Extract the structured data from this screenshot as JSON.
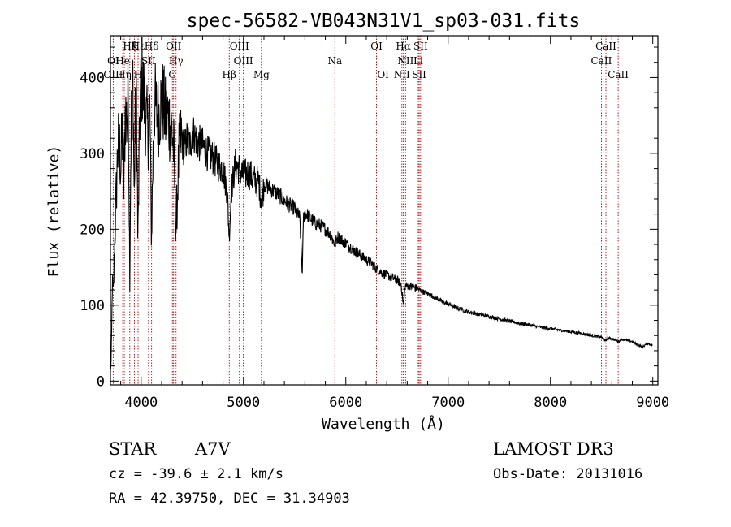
{
  "chart_data": {
    "type": "line",
    "title": "spec-56582-VB043N31V1_sp03-031.fits",
    "xlabel": "Wavelength (Å)",
    "ylabel": "Flux (relative)",
    "xlim": [
      3700,
      9050
    ],
    "ylim": [
      -5,
      455
    ],
    "xticks": [
      4000,
      5000,
      6000,
      7000,
      8000,
      9000
    ],
    "yticks": [
      0,
      100,
      200,
      300,
      400
    ],
    "xtick_labels": [
      "4000",
      "5000",
      "6000",
      "7000",
      "8000",
      "9000"
    ],
    "ytick_labels": [
      "0",
      "100",
      "200",
      "300",
      "400"
    ],
    "grid": false,
    "legend": "none",
    "series": [
      {
        "name": "flux",
        "anchors": [
          [
            3700,
            15
          ],
          [
            3705,
            20
          ],
          [
            3712,
            60
          ],
          [
            3718,
            130
          ],
          [
            3728,
            110
          ],
          [
            3740,
            175
          ],
          [
            3755,
            240
          ],
          [
            3770,
            300
          ],
          [
            3785,
            320
          ],
          [
            3800,
            280
          ],
          [
            3815,
            330
          ],
          [
            3830,
            250
          ],
          [
            3845,
            360
          ],
          [
            3860,
            340
          ],
          [
            3875,
            380
          ],
          [
            3880,
            280
          ],
          [
            3889,
            140
          ],
          [
            3895,
            250
          ],
          [
            3905,
            360
          ],
          [
            3920,
            400
          ],
          [
            3933,
            230
          ],
          [
            3940,
            330
          ],
          [
            3955,
            370
          ],
          [
            3968,
            180
          ],
          [
            3975,
            240
          ],
          [
            3990,
            370
          ],
          [
            4010,
            400
          ],
          [
            4030,
            370
          ],
          [
            4050,
            340
          ],
          [
            4070,
            330
          ],
          [
            4085,
            360
          ],
          [
            4101,
            180
          ],
          [
            4110,
            260
          ],
          [
            4130,
            370
          ],
          [
            4150,
            355
          ],
          [
            4170,
            350
          ],
          [
            4200,
            370
          ],
          [
            4220,
            365
          ],
          [
            4240,
            345
          ],
          [
            4260,
            350
          ],
          [
            4280,
            340
          ],
          [
            4300,
            330
          ],
          [
            4320,
            300
          ],
          [
            4340,
            195
          ],
          [
            4355,
            250
          ],
          [
            4370,
            300
          ],
          [
            4390,
            320
          ],
          [
            4420,
            305
          ],
          [
            4450,
            320
          ],
          [
            4480,
            310
          ],
          [
            4500,
            330
          ],
          [
            4550,
            315
          ],
          [
            4600,
            310
          ],
          [
            4650,
            300
          ],
          [
            4700,
            295
          ],
          [
            4750,
            285
          ],
          [
            4800,
            280
          ],
          [
            4840,
            250
          ],
          [
            4861,
            190
          ],
          [
            4880,
            250
          ],
          [
            4920,
            285
          ],
          [
            4960,
            280
          ],
          [
            5000,
            270
          ],
          [
            5050,
            275
          ],
          [
            5100,
            265
          ],
          [
            5150,
            262
          ],
          [
            5167,
            245
          ],
          [
            5183,
            240
          ],
          [
            5200,
            260
          ],
          [
            5250,
            255
          ],
          [
            5300,
            250
          ],
          [
            5350,
            245
          ],
          [
            5400,
            238
          ],
          [
            5450,
            232
          ],
          [
            5500,
            228
          ],
          [
            5550,
            215
          ],
          [
            5575,
            140
          ],
          [
            5585,
            215
          ],
          [
            5600,
            222
          ],
          [
            5650,
            215
          ],
          [
            5700,
            208
          ],
          [
            5750,
            205
          ],
          [
            5800,
            200
          ],
          [
            5850,
            193
          ],
          [
            5893,
            180
          ],
          [
            5920,
            190
          ],
          [
            6000,
            182
          ],
          [
            6050,
            176
          ],
          [
            6100,
            170
          ],
          [
            6150,
            165
          ],
          [
            6200,
            160
          ],
          [
            6250,
            155
          ],
          [
            6300,
            148
          ],
          [
            6350,
            143
          ],
          [
            6400,
            140
          ],
          [
            6450,
            136
          ],
          [
            6500,
            133
          ],
          [
            6540,
            128
          ],
          [
            6563,
            100
          ],
          [
            6580,
            125
          ],
          [
            6620,
            126
          ],
          [
            6650,
            124
          ],
          [
            6700,
            122
          ],
          [
            6750,
            118
          ],
          [
            6800,
            115
          ],
          [
            6850,
            112
          ],
          [
            6900,
            108
          ],
          [
            6950,
            104
          ],
          [
            7000,
            102
          ],
          [
            7100,
            96
          ],
          [
            7200,
            91
          ],
          [
            7300,
            88
          ],
          [
            7400,
            85
          ],
          [
            7500,
            82
          ],
          [
            7600,
            79
          ],
          [
            7700,
            76
          ],
          [
            7800,
            74
          ],
          [
            7900,
            71
          ],
          [
            8000,
            69
          ],
          [
            8100,
            67
          ],
          [
            8200,
            65
          ],
          [
            8300,
            63
          ],
          [
            8400,
            60
          ],
          [
            8500,
            58
          ],
          [
            8542,
            53
          ],
          [
            8560,
            57
          ],
          [
            8600,
            56
          ],
          [
            8662,
            52
          ],
          [
            8700,
            55
          ],
          [
            8800,
            52
          ],
          [
            8850,
            48
          ],
          [
            8900,
            45
          ],
          [
            8950,
            50
          ],
          [
            9000,
            47
          ]
        ]
      }
    ],
    "line_markers": [
      {
        "label": "Hζ",
        "wavelength": 3889,
        "row": 1
      },
      {
        "label": "Hε",
        "wavelength": 3970,
        "row": 1
      },
      {
        "label": "K",
        "wavelength": 3934,
        "row": 1
      },
      {
        "label": "Hδ",
        "wavelength": 4102,
        "row": 1
      },
      {
        "label": "OII",
        "wavelength": 4317,
        "row": 1
      },
      {
        "label": "OIII",
        "wavelength": 4960,
        "row": 1
      },
      {
        "label": "OI",
        "wavelength": 6300,
        "row": 1
      },
      {
        "label": "Hα",
        "wavelength": 6563,
        "row": 1
      },
      {
        "label": "SII",
        "wavelength": 6731,
        "row": 1
      },
      {
        "label": "CaII",
        "wavelength": 8542,
        "row": 1
      },
      {
        "label": "OI",
        "wavelength": 3727,
        "row": 2
      },
      {
        "label": "He",
        "wavelength": 3820,
        "row": 2
      },
      {
        "label": "SII",
        "wavelength": 4072,
        "row": 2
      },
      {
        "label": "Hγ",
        "wavelength": 4341,
        "row": 2
      },
      {
        "label": "OIII",
        "wavelength": 4999,
        "row": 2
      },
      {
        "label": "Na",
        "wavelength": 5893,
        "row": 2
      },
      {
        "label": "NII",
        "wavelength": 6584,
        "row": 2
      },
      {
        "label": "Li",
        "wavelength": 6708,
        "row": 2
      },
      {
        "label": "CaII",
        "wavelength": 8498,
        "row": 2
      },
      {
        "label": "OIII",
        "wavelength": 3727,
        "row": 3
      },
      {
        "label": "Hη",
        "wavelength": 3835,
        "row": 3
      },
      {
        "label": "H",
        "wavelength": 3969,
        "row": 3
      },
      {
        "label": "G",
        "wavelength": 4305,
        "row": 3
      },
      {
        "label": "Hβ",
        "wavelength": 4861,
        "row": 3
      },
      {
        "label": "Mg",
        "wavelength": 5175,
        "row": 3
      },
      {
        "label": "OI",
        "wavelength": 6364,
        "row": 3
      },
      {
        "label": "NII",
        "wavelength": 6548,
        "row": 3
      },
      {
        "label": "SII",
        "wavelength": 6717,
        "row": 3
      },
      {
        "label": "CaII",
        "wavelength": 8662,
        "row": 3
      }
    ]
  },
  "info": {
    "object_class": "STAR",
    "subclass": "A7V",
    "survey": "LAMOST DR3",
    "redshift": "cz = -39.6 ± 2.1 km/s",
    "obs_date": "Obs-Date: 20131016",
    "coordinates": "RA =  42.39750, DEC =  31.34903"
  },
  "colors": {
    "spectrum": "#000000",
    "marker_line": "#b00000",
    "axes": "#000000",
    "background": "#ffffff"
  }
}
